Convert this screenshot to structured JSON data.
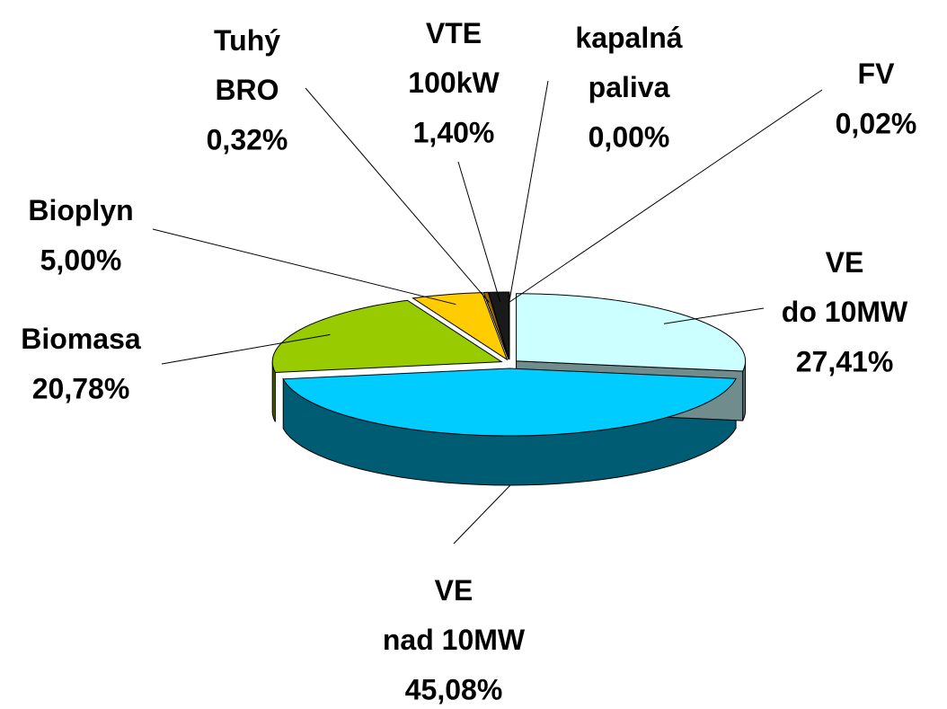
{
  "chart_data": {
    "type": "pie",
    "three_d": true,
    "categories": [
      "VE\ndo 10MW",
      "VE\nnad  10MW",
      "Biomasa",
      "Bioplyn",
      "Tuhý\nBRO",
      "VTE\n100kW",
      "kapalná\npaliva",
      "FV"
    ],
    "values": [
      27.41,
      45.08,
      20.78,
      5.0,
      0.32,
      1.4,
      0.0,
      0.02
    ],
    "value_labels": [
      "27,41%",
      "45,08%",
      "20,78%",
      "5,00%",
      "0,32%",
      "1,40%",
      "0,00%",
      "0,02%"
    ],
    "colors": [
      "#ccffff",
      "#00ccff",
      "#99cc00",
      "#ffcc00",
      "#996600",
      "#1a1a1a",
      "#ff3300",
      "#ff6600"
    ]
  }
}
